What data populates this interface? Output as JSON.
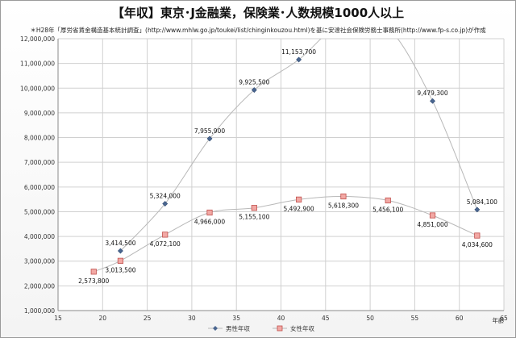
{
  "chart_data": {
    "type": "line",
    "title": "【年収】東京･J金融業，保険業･人数規模1000人以上",
    "subtitle": "＊H28年「厚労省賃金構造基本統計調査」(http://www.mhlw.go.jp/toukei/list/chinginkouzou.html)を基に安達社会保険労務士事務所(http://www.fp-s.co.jp)が作成",
    "xlabel": "年齢",
    "ylabel": "",
    "xlim": [
      15,
      65
    ],
    "ylim": [
      1000000,
      12000000
    ],
    "x_ticks": [
      "15",
      "20",
      "25",
      "30",
      "35",
      "40",
      "45",
      "50",
      "55",
      "60",
      "65"
    ],
    "y_ticks": [
      "1,000,000",
      "2,000,000",
      "3,000,000",
      "4,000,000",
      "5,000,000",
      "6,000,000",
      "7,000,000",
      "8,000,000",
      "9,000,000",
      "10,000,000",
      "11,000,000",
      "12,000,000"
    ],
    "grid": true,
    "legend_position": "bottom",
    "series": [
      {
        "name": "男性年収",
        "color": "#4a6690",
        "marker": "diamond",
        "x": [
          22,
          27,
          32,
          37,
          42,
          47,
          52,
          57,
          62
        ],
        "values": [
          3414500,
          5324000,
          7955900,
          9925500,
          11153700,
          12690000,
          12450000,
          9479300,
          5084100
        ],
        "labels": [
          "3,414,500",
          "5,324,000",
          "7,955,900",
          "9,925,500",
          "11,153,700",
          null,
          null,
          "9,479,300",
          "5,084,100"
        ]
      },
      {
        "name": "女性年収",
        "color": "#c0504d",
        "marker": "square",
        "x": [
          19,
          22,
          27,
          32,
          37,
          42,
          47,
          52,
          57,
          62
        ],
        "values": [
          2573800,
          3013500,
          4072100,
          4966000,
          5155100,
          5492900,
          5618300,
          5456100,
          4851000,
          4034600
        ],
        "labels": [
          "2,573,800",
          "3,013,500",
          "4,072,100",
          "4,966,000",
          "5,155,100",
          "5,492,900",
          "5,618,300",
          "5,456,100",
          "4,851,000",
          "4,034,600"
        ]
      }
    ]
  }
}
